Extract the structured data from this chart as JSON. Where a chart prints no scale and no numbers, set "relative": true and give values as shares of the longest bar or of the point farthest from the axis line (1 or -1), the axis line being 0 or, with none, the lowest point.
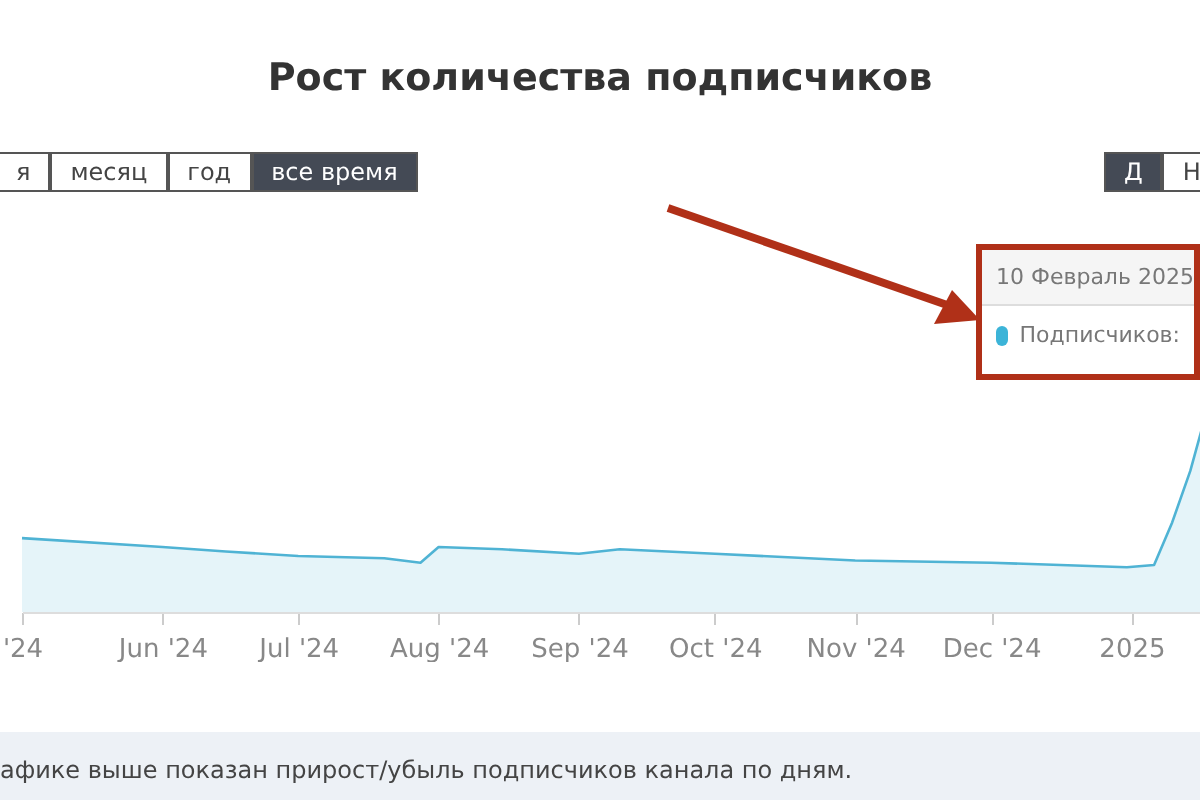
{
  "chart_data": {
    "type": "area",
    "title": "Рост количества подписчиков",
    "relative": true,
    "x": [
      "2024-05-01",
      "2024-06-01",
      "2024-06-15",
      "2024-07-01",
      "2024-07-20",
      "2024-07-28",
      "2024-08-01",
      "2024-08-15",
      "2024-09-01",
      "2024-09-10",
      "2024-10-01",
      "2024-11-01",
      "2024-12-01",
      "2024-12-31",
      "2025-01-06",
      "2025-01-10",
      "2025-01-14",
      "2025-01-17",
      "2025-01-21"
    ],
    "series": [
      {
        "color": "#4fb3d4",
        "values": [
          0.33,
          0.29,
          0.27,
          0.25,
          0.24,
          0.22,
          0.29,
          0.28,
          0.26,
          0.28,
          0.26,
          0.23,
          0.22,
          0.2,
          0.21,
          0.4,
          0.63,
          0.85,
          1
        ]
      }
    ],
    "xlim": [
      "2024-05-01",
      "2025-01-21"
    ],
    "xticks": [
      {
        "value": "2024-05-01",
        "label": "'24"
      },
      {
        "value": "2024-06-01",
        "label": "Jun '24"
      },
      {
        "value": "2024-07-01",
        "label": "Jul '24"
      },
      {
        "value": "2024-08-01",
        "label": "Aug '24"
      },
      {
        "value": "2024-09-01",
        "label": "Sep '24"
      },
      {
        "value": "2024-10-01",
        "label": "Oct '24"
      },
      {
        "value": "2024-11-01",
        "label": "Nov '24"
      },
      {
        "value": "2024-12-01",
        "label": "Dec '24"
      },
      {
        "value": "2025-01-01",
        "label": "2025"
      }
    ],
    "annotations": [
      "я",
      "месяц",
      "год",
      "все время",
      "Д",
      "Н",
      "10 Февраль 2025",
      "Подписчиков:",
      "афике выше показан прирост/убыль подписчиков канала по дням."
    ]
  }
}
